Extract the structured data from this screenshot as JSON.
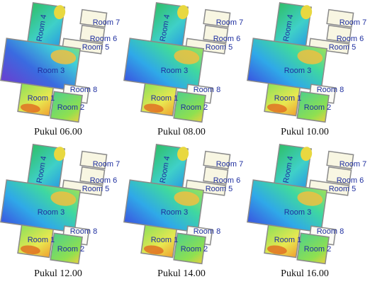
{
  "room_labels": [
    "Room 1",
    "Room 2",
    "Room 3",
    "Room 4",
    "Room 5",
    "Room 6",
    "Room 7",
    "Room 8"
  ],
  "panels": [
    {
      "caption": "Pukul 06.00"
    },
    {
      "caption": "Pukul 08.00"
    },
    {
      "caption": "Pukul 10.00"
    },
    {
      "caption": "Pukul 12.00"
    },
    {
      "caption": "Pukul 14.00"
    },
    {
      "caption": "Pukul 16.00"
    }
  ]
}
